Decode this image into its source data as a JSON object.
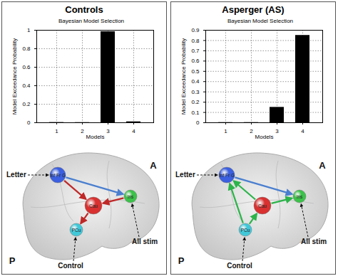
{
  "chart_data": [
    {
      "type": "bar",
      "title": "Bayesian Model Selection",
      "x_label": "Models",
      "y_label": "Model Exceedance Probability",
      "categories": [
        "1",
        "2",
        "3",
        "4"
      ],
      "values": [
        0.003,
        0.002,
        0.985,
        0.01
      ],
      "color": "#000000",
      "ylim": [
        0,
        1
      ],
      "yticks": [
        0,
        0.2,
        0.4,
        0.6,
        0.8,
        1
      ],
      "grid": true
    },
    {
      "type": "bar",
      "title": "Bayesian Model Selection",
      "x_label": "Models",
      "y_label": "Model Exceedance Probability",
      "categories": [
        "1",
        "2",
        "3",
        "4"
      ],
      "values": [
        0.002,
        0.002,
        0.15,
        0.85
      ],
      "color": "#000000",
      "ylim": [
        0,
        0.9
      ],
      "yticks": [
        0,
        0.1,
        0.2,
        0.3,
        0.4,
        0.5,
        0.6,
        0.7,
        0.8,
        0.9
      ],
      "grid": true
    }
  ],
  "panels": [
    {
      "title": "Controls",
      "diagram": {
        "nodes": [
          {
            "label": "Inf Fr G",
            "color": "#3b5fe0"
          },
          {
            "label": "Cau",
            "color": "#d93030"
          },
          {
            "label": "Ins",
            "color": "#3cc24a"
          },
          {
            "label": "PCu",
            "color": "#40c8d8"
          }
        ],
        "edges": [
          {
            "from": "Inf Fr G",
            "to": "Ins",
            "color": "#4a7fd0"
          },
          {
            "from": "Inf Fr G",
            "to": "Cau",
            "color": "#c02828"
          },
          {
            "from": "Ins",
            "to": "Cau",
            "color": "#c02828"
          },
          {
            "from": "Cau",
            "to": "PCu",
            "color": "#c02828"
          }
        ],
        "inputs": [
          {
            "label": "Letter",
            "to": "Inf Fr G"
          },
          {
            "label": "All stim",
            "to": "Ins"
          },
          {
            "label": "Control",
            "to": "PCu"
          }
        ],
        "anterior_label": "A",
        "posterior_label": "P"
      }
    },
    {
      "title": "Asperger (AS)",
      "diagram": {
        "nodes": [
          {
            "label": "Inf Fr G",
            "color": "#3b5fe0"
          },
          {
            "label": "Cau",
            "color": "#d93030"
          },
          {
            "label": "Ins",
            "color": "#3cc24a"
          },
          {
            "label": "PCu",
            "color": "#40c8d8"
          }
        ],
        "edges": [
          {
            "from": "Inf Fr G",
            "to": "Ins",
            "color": "#4a7fd0"
          },
          {
            "from": "Cau",
            "to": "Inf Fr G",
            "color": "#2cb44a"
          },
          {
            "from": "PCu",
            "to": "Inf Fr G",
            "color": "#2cb44a"
          },
          {
            "from": "PCu",
            "to": "Cau",
            "color": "#2cb44a"
          },
          {
            "from": "Cau",
            "to": "Ins",
            "color": "#2cb44a"
          }
        ],
        "inputs": [
          {
            "label": "Letter",
            "to": "Inf Fr G"
          },
          {
            "label": "All stim",
            "to": "Ins"
          },
          {
            "label": "Control",
            "to": "PCu"
          }
        ],
        "anterior_label": "A",
        "posterior_label": "P"
      }
    }
  ]
}
